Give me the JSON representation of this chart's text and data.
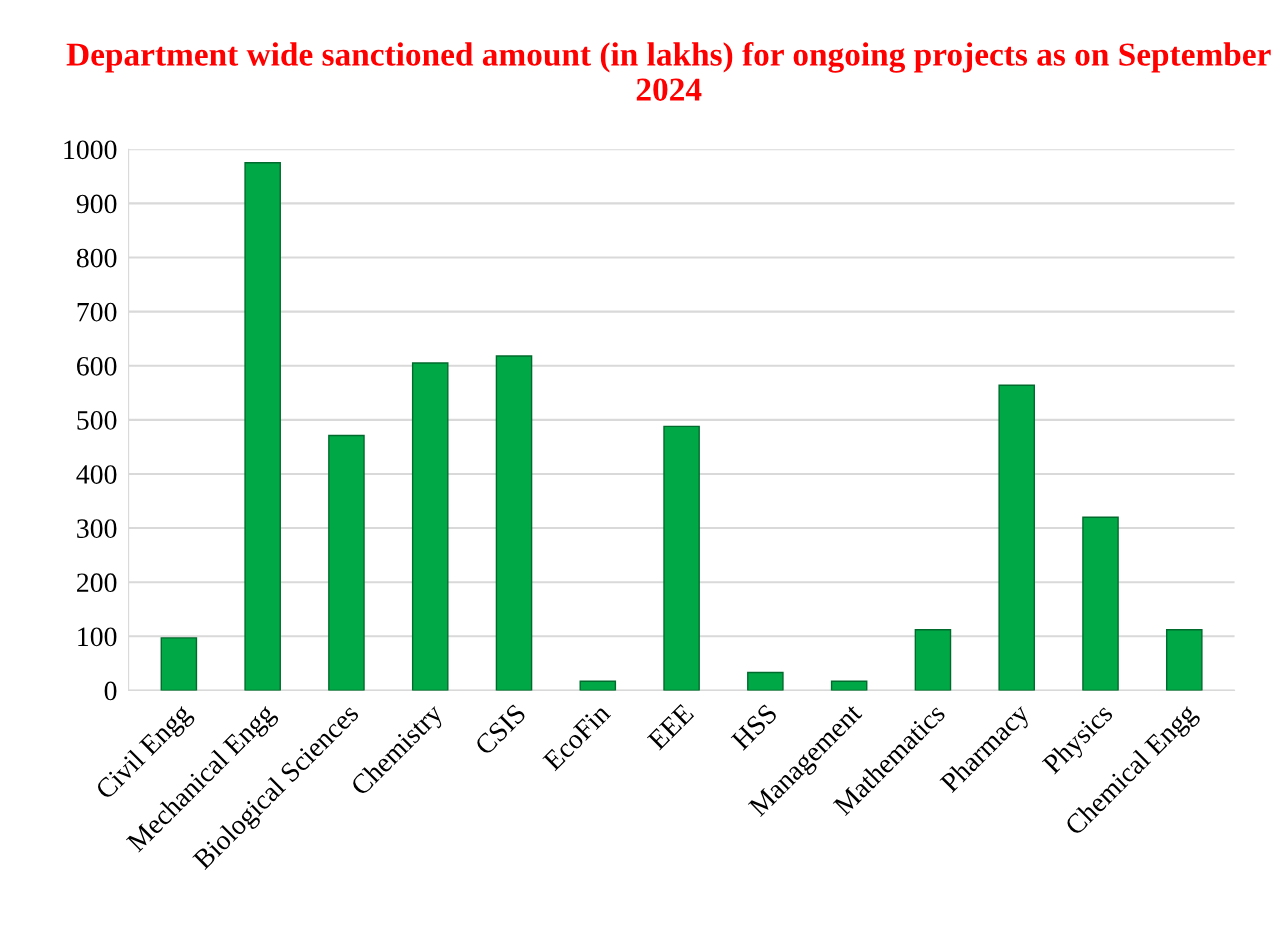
{
  "chart_data": {
    "type": "bar",
    "title": "Department wide sanctioned amount (in lakhs) for ongoing projects as on September 2024",
    "categories": [
      "Civil Engg",
      "Mechanical Engg",
      "Biological Sciences",
      "Chemistry",
      "CSIS",
      "EcoFin",
      "EEE",
      "HSS",
      "Management",
      "Mathematics",
      "Pharmacy",
      "Physics",
      "Chemical Engg"
    ],
    "values": [
      97,
      975,
      471,
      605,
      618,
      17,
      488,
      33,
      17,
      112,
      564,
      320,
      112
    ],
    "color": "#00a846",
    "ylim": [
      0,
      1000
    ],
    "yticks": [
      0,
      100,
      200,
      300,
      400,
      500,
      600,
      700,
      800,
      900,
      1000
    ],
    "grid": "y"
  }
}
